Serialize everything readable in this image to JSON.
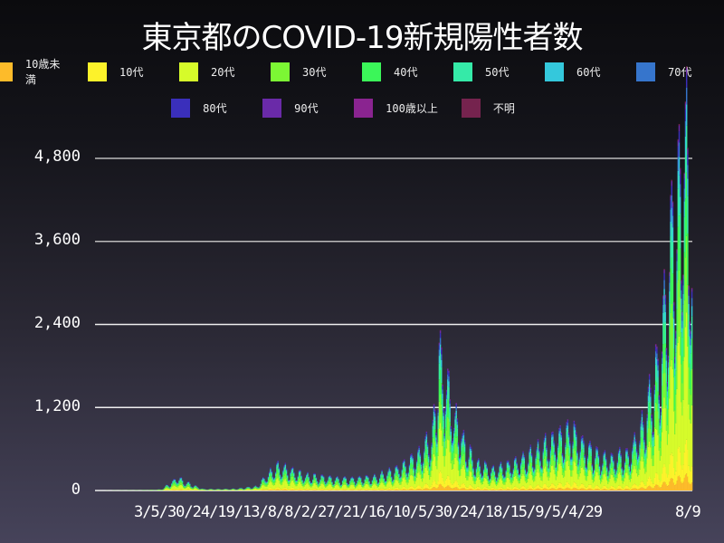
{
  "chart_data": {
    "type": "bar",
    "stacked": true,
    "title": "東京都のCOVID-19新規陽性者数",
    "xlabel": "",
    "ylabel": "",
    "ylim": [
      0,
      4800
    ],
    "yticks": [
      "0",
      "1,200",
      "2,400",
      "3,600",
      "4,800"
    ],
    "ytick_values": [
      0,
      1200,
      2400,
      3600,
      4800
    ],
    "xtick_labels": [
      "3/5",
      "3/30",
      "4/24",
      "5/19",
      "6/13",
      "7/8",
      "8/2",
      "8/27",
      "9/21",
      "10/16",
      "11/10",
      "12/5",
      "12/30",
      "1/24",
      "2/18",
      "3/15",
      "4/9",
      "5/4",
      "5/29",
      "8/9"
    ],
    "x_range": [
      "2020-01-24",
      "2021-08-09"
    ],
    "grid": "horizontal",
    "legend_position": "top",
    "series": [
      {
        "name": "10歳未満",
        "color": "#fdbb2a",
        "share": 0.04
      },
      {
        "name": "10代",
        "color": "#fdf22a",
        "share": 0.08
      },
      {
        "name": "20代",
        "color": "#d6fb2a",
        "share": 0.3
      },
      {
        "name": "30代",
        "color": "#7cf734",
        "share": 0.18
      },
      {
        "name": "40代",
        "color": "#3bf659",
        "share": 0.15
      },
      {
        "name": "50代",
        "color": "#35eaa8",
        "share": 0.11
      },
      {
        "name": "60代",
        "color": "#34c8dc",
        "share": 0.05
      },
      {
        "name": "70代",
        "color": "#3675cc",
        "share": 0.04
      },
      {
        "name": "80代",
        "color": "#3a2fbb",
        "share": 0.03
      },
      {
        "name": "90代",
        "color": "#6a2aa8",
        "share": 0.015
      },
      {
        "name": "100歳以上",
        "color": "#8a2490",
        "share": 0.002
      },
      {
        "name": "不明",
        "color": "#75234e",
        "share": 0.003
      }
    ],
    "envelope_note": "approximate daily total positives (key points, linearly interpolated by day index)",
    "envelope": [
      [
        0,
        0
      ],
      [
        40,
        5
      ],
      [
        60,
        15
      ],
      [
        70,
        120
      ],
      [
        75,
        180
      ],
      [
        80,
        150
      ],
      [
        88,
        90
      ],
      [
        100,
        20
      ],
      [
        130,
        25
      ],
      [
        150,
        60
      ],
      [
        160,
        230
      ],
      [
        170,
        340
      ],
      [
        180,
        300
      ],
      [
        195,
        220
      ],
      [
        230,
        170
      ],
      [
        260,
        190
      ],
      [
        280,
        300
      ],
      [
        295,
        430
      ],
      [
        305,
        580
      ],
      [
        315,
        820
      ],
      [
        320,
        1340
      ],
      [
        322,
        2450
      ],
      [
        325,
        1500
      ],
      [
        328,
        1950
      ],
      [
        332,
        1300
      ],
      [
        340,
        900
      ],
      [
        355,
        420
      ],
      [
        375,
        300
      ],
      [
        395,
        420
      ],
      [
        430,
        720
      ],
      [
        445,
        900
      ],
      [
        460,
        650
      ],
      [
        480,
        450
      ],
      [
        500,
        520
      ],
      [
        515,
        1000
      ],
      [
        530,
        2000
      ],
      [
        540,
        3800
      ],
      [
        548,
        4450
      ],
      [
        555,
        5040
      ],
      [
        560,
        3500
      ]
    ]
  },
  "legend": {
    "row1": [
      {
        "label": "10歳未満",
        "color": "#fdbb2a"
      },
      {
        "label": "10代",
        "color": "#fdf22a"
      },
      {
        "label": "20代",
        "color": "#d6fb2a"
      },
      {
        "label": "30代",
        "color": "#7cf734"
      },
      {
        "label": "40代",
        "color": "#3bf659"
      },
      {
        "label": "50代",
        "color": "#35eaa8"
      },
      {
        "label": "60代",
        "color": "#34c8dc"
      },
      {
        "label": "70代",
        "color": "#3675cc"
      }
    ],
    "row2": [
      {
        "label": "80代",
        "color": "#3a2fbb"
      },
      {
        "label": "90代",
        "color": "#6a2aa8"
      },
      {
        "label": "100歳以上",
        "color": "#8a2490"
      },
      {
        "label": "不明",
        "color": "#75234e"
      }
    ]
  },
  "axis": {
    "y0": "0",
    "y1": "1,200",
    "y2": "2,400",
    "y3": "3,600",
    "y4": "4,800",
    "x_overlapped_text": "3/5/30/24/19/13/8/8/2/27/21/16/10/5/30/24/18/15/9/5/4/29",
    "x_last": "8/9"
  }
}
